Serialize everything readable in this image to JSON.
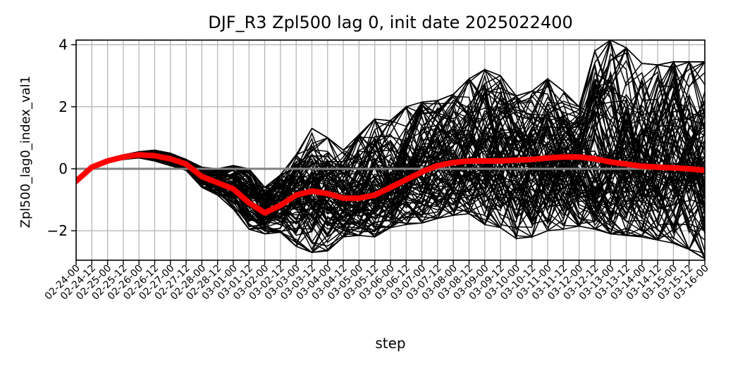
{
  "chart_data": {
    "type": "line",
    "title": "DJF_R3 Zpl500 lag 0, init date 2025022400",
    "xlabel": "step",
    "ylabel": "Zpl500_lag0_index_val1",
    "ylim": [
      -2.95,
      4.15
    ],
    "y_ticks": [
      -2,
      0,
      2,
      4
    ],
    "y_tick_labels": [
      "−2",
      "0",
      "2",
      "4"
    ],
    "grid": true,
    "x_tick_labels": [
      "02-24-00",
      "02-24-12",
      "02-25-00",
      "02-25-12",
      "02-26-00",
      "02-26-12",
      "02-27-00",
      "02-27-12",
      "02-28-00",
      "02-28-12",
      "03-01-00",
      "03-01-12",
      "03-02-00",
      "03-02-12",
      "03-03-00",
      "03-03-12",
      "03-04-00",
      "03-04-12",
      "03-05-00",
      "03-05-12",
      "03-06-00",
      "03-06-12",
      "03-07-00",
      "03-07-12",
      "03-08-00",
      "03-08-12",
      "03-09-00",
      "03-09-12",
      "03-10-00",
      "03-10-12",
      "03-11-00",
      "03-11-12",
      "03-12-00",
      "03-12-12",
      "03-13-00",
      "03-13-12",
      "03-14-00",
      "03-14-12",
      "03-15-00",
      "03-15-12",
      "03-16-00"
    ],
    "x_steps": [
      0,
      1,
      2,
      3,
      4,
      5,
      6,
      7,
      8,
      9,
      10,
      11,
      12,
      13,
      14,
      15,
      16,
      17,
      18,
      19,
      20,
      21,
      22,
      23,
      24,
      25,
      26,
      27,
      28,
      29,
      30,
      31,
      32,
      33,
      34,
      35,
      36,
      37,
      38,
      39,
      40
    ],
    "x_range": [
      0,
      40
    ],
    "reference_line": {
      "y": 0,
      "color": "#808080"
    },
    "ensemble_color": "#000000",
    "mean_color": "#ff0000",
    "ensemble_members_approx": 100,
    "series": [
      {
        "role": "ensemble-mean",
        "values": [
          -0.4,
          0.05,
          0.25,
          0.38,
          0.45,
          0.42,
          0.32,
          0.15,
          -0.25,
          -0.45,
          -0.65,
          -1.1,
          -1.42,
          -1.18,
          -0.85,
          -0.72,
          -0.8,
          -0.95,
          -0.95,
          -0.85,
          -0.6,
          -0.35,
          -0.1,
          0.1,
          0.2,
          0.25,
          0.25,
          0.25,
          0.28,
          0.3,
          0.35,
          0.38,
          0.38,
          0.32,
          0.22,
          0.15,
          0.08,
          0.05,
          0.03,
          0.0,
          -0.05
        ]
      },
      {
        "role": "ensemble-envelope-upper",
        "values": [
          -0.35,
          0.1,
          0.3,
          0.45,
          0.55,
          0.6,
          0.5,
          0.3,
          0.05,
          0.0,
          0.1,
          0.0,
          -0.6,
          -0.2,
          0.45,
          1.3,
          1.0,
          0.6,
          1.1,
          1.6,
          1.55,
          2.0,
          2.15,
          2.2,
          2.4,
          2.9,
          3.2,
          3.0,
          2.35,
          2.5,
          2.9,
          2.5,
          2.0,
          3.8,
          4.15,
          3.9,
          3.4,
          3.35,
          3.45,
          3.45,
          3.45
        ]
      },
      {
        "role": "ensemble-envelope-lower",
        "values": [
          -0.45,
          0.0,
          0.2,
          0.3,
          0.35,
          0.25,
          0.1,
          -0.05,
          -0.6,
          -0.85,
          -1.3,
          -1.95,
          -2.1,
          -2.05,
          -2.5,
          -2.7,
          -2.65,
          -2.2,
          -2.15,
          -2.2,
          -1.9,
          -1.8,
          -1.75,
          -1.6,
          -1.5,
          -1.45,
          -1.8,
          -1.9,
          -2.25,
          -2.2,
          -2.0,
          -1.95,
          -1.85,
          -1.95,
          -2.1,
          -2.15,
          -2.2,
          -2.3,
          -2.4,
          -2.6,
          -2.9
        ]
      }
    ]
  }
}
